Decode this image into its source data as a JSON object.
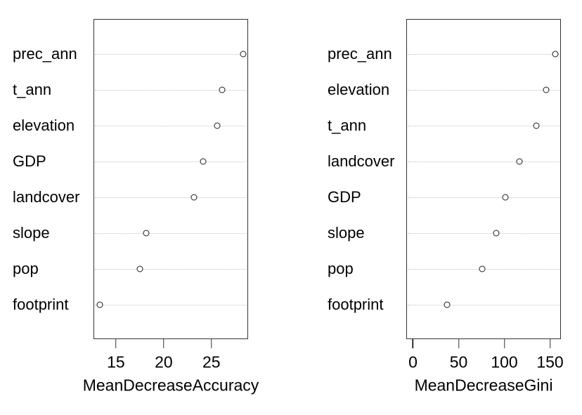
{
  "colors": {
    "background": "#ffffff",
    "text": "#000000",
    "box_border": "#333333",
    "gridline": "#c2c2c2",
    "point_stroke": "#1a1a1a",
    "point_fill": "#ffffff"
  },
  "chart_data": [
    {
      "type": "scatter",
      "variant": "dotchart",
      "title": "",
      "xlabel": "MeanDecreaseAccuracy",
      "ylabel": "",
      "categories": [
        "prec_ann",
        "t_ann",
        "elevation",
        "GDP",
        "landcover",
        "slope",
        "pop",
        "footprint"
      ],
      "values": [
        28.3,
        26.1,
        25.6,
        24.1,
        23.2,
        18.2,
        17.5,
        13.3
      ],
      "xticks": [
        15,
        20,
        25
      ],
      "xlim": [
        12.65,
        28.84
      ],
      "grid": "horizontal dotted",
      "marker": "open-circle",
      "legend": "none"
    },
    {
      "type": "scatter",
      "variant": "dotchart",
      "title": "",
      "xlabel": "MeanDecreaseGini",
      "ylabel": "",
      "categories": [
        "prec_ann",
        "elevation",
        "t_ann",
        "landcover",
        "GDP",
        "slope",
        "pop",
        "footprint"
      ],
      "values": [
        155.7,
        145.6,
        134.8,
        116.6,
        100.9,
        91.1,
        75.7,
        37.2
      ],
      "xticks": [
        0,
        50,
        100,
        150
      ],
      "xlim": [
        -7.3,
        161.9
      ],
      "grid": "horizontal dotted",
      "marker": "open-circle",
      "legend": "none"
    }
  ]
}
